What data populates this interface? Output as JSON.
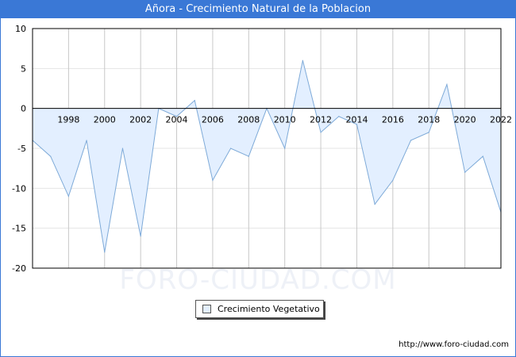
{
  "header": {
    "title": "Añora - Crecimiento Natural de la Poblacion"
  },
  "watermark": "FORO-CIUDAD.COM",
  "footer": {
    "url": "http://www.foro-ciudad.com"
  },
  "colors": {
    "title_bar": "#3a78d6",
    "area_fill": "#e3efff",
    "line": "#7eaad8",
    "zero_line": "#000000",
    "grid": "#c8c8c8"
  },
  "chart_data": {
    "type": "area",
    "title": "Añora - Crecimiento Natural de la Poblacion",
    "xlabel": "",
    "ylabel": "",
    "x": [
      1996,
      1997,
      1998,
      1999,
      2000,
      2001,
      2002,
      2003,
      2004,
      2005,
      2006,
      2007,
      2008,
      2009,
      2010,
      2011,
      2012,
      2013,
      2014,
      2015,
      2016,
      2017,
      2018,
      2019,
      2020,
      2021,
      2022
    ],
    "series": [
      {
        "name": "Crecimiento Vegetativo",
        "values": [
          -4,
          -6,
          -11,
          -4,
          -18,
          -5,
          -16,
          0,
          -1,
          1,
          -9,
          -5,
          -6,
          0,
          -5,
          6,
          -3,
          -1,
          -2,
          -12,
          -9,
          -4,
          -3,
          3,
          -8,
          -6,
          -13
        ]
      }
    ],
    "x_tick_labels": [
      "1998",
      "2000",
      "2002",
      "2004",
      "2006",
      "2008",
      "2010",
      "2012",
      "2014",
      "2016",
      "2018",
      "2020",
      "2022"
    ],
    "y_tick_labels": [
      "10",
      "5",
      "0",
      "-5",
      "-10",
      "-15",
      "-20"
    ],
    "xlim": [
      1996,
      2022
    ],
    "ylim": [
      -20,
      10
    ],
    "grid": true,
    "legend": {
      "position": "bottom-center",
      "label": "Crecimiento Vegetativo"
    }
  }
}
